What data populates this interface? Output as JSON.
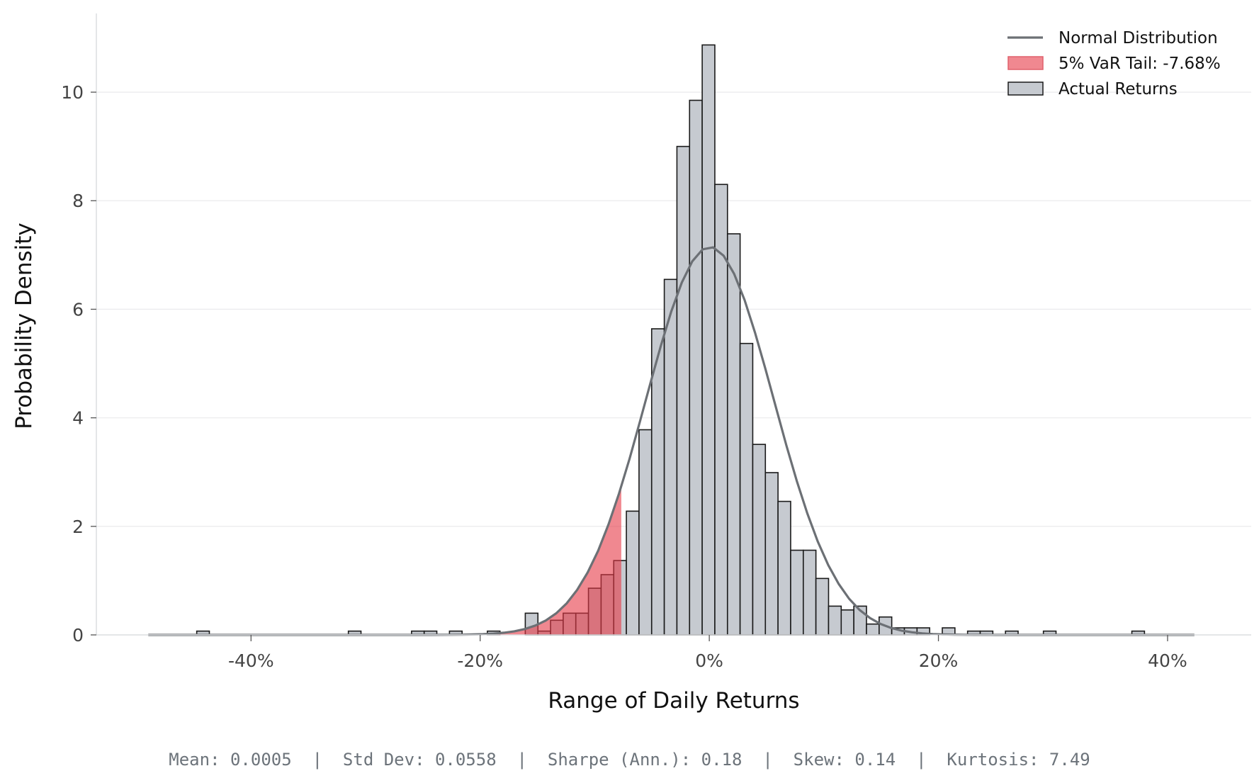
{
  "chart_data": {
    "type": "bar",
    "subtype": "histogram-with-normal-fit",
    "title": "",
    "xlabel": "Range of Daily Returns",
    "ylabel": "Probability Density",
    "x_unit": "%",
    "xlim": [
      -53.5,
      47.3
    ],
    "ylim": [
      0,
      11.45
    ],
    "x_ticks": [
      -40,
      -20,
      0,
      20,
      40
    ],
    "x_tick_labels": [
      "-40%",
      "-20%",
      "0%",
      "20%",
      "40%"
    ],
    "y_ticks": [
      0,
      2,
      4,
      6,
      8,
      10
    ],
    "y_tick_labels": [
      "0",
      "2",
      "4",
      "6",
      "8",
      "10"
    ],
    "grid": "horizontal",
    "legend_placement": "top-right",
    "histogram": {
      "name": "Actual Returns",
      "bin_start": -44.74,
      "bin_width": 1.103,
      "densities": [
        0.07,
        0,
        0,
        0,
        0,
        0,
        0,
        0,
        0,
        0,
        0,
        0,
        0.07,
        0,
        0,
        0,
        0,
        0.07,
        0.07,
        0,
        0.07,
        0,
        0,
        0.07,
        0,
        0,
        0.4,
        0.07,
        0.27,
        0.4,
        0.4,
        0.86,
        1.11,
        1.37,
        2.28,
        3.78,
        5.64,
        6.55,
        9.0,
        9.85,
        10.87,
        8.3,
        7.39,
        5.37,
        3.51,
        2.99,
        2.46,
        1.56,
        1.56,
        1.04,
        0.53,
        0.46,
        0.53,
        0.2,
        0.33,
        0.13,
        0.13,
        0.13,
        0,
        0.13,
        0,
        0.07,
        0.07,
        0,
        0.07,
        0,
        0,
        0.07,
        0,
        0,
        0,
        0,
        0,
        0,
        0.07
      ],
      "color": "#c6cad0",
      "edge_color": "#1a1a1a"
    },
    "normal_curve": {
      "name": "Normal Distribution",
      "mean_pct": 0.05,
      "std_pct": 5.58,
      "x_range": [
        -48.97,
        42.34
      ],
      "color": "#6c7075"
    },
    "var_tail": {
      "name": "5% VaR Tail: -7.68%",
      "threshold_pct": -7.68,
      "color": "#e63946",
      "opacity": 0.6
    },
    "legend": [
      "Normal Distribution",
      "5% VaR Tail: -7.68%",
      "Actual Returns"
    ]
  },
  "footer": {
    "stats": "Mean: 0.0005  |  Std Dev: 0.0558  |  Sharpe (Ann.): 0.18  |  Skew: 0.14  |  Kurtosis: 7.49"
  }
}
